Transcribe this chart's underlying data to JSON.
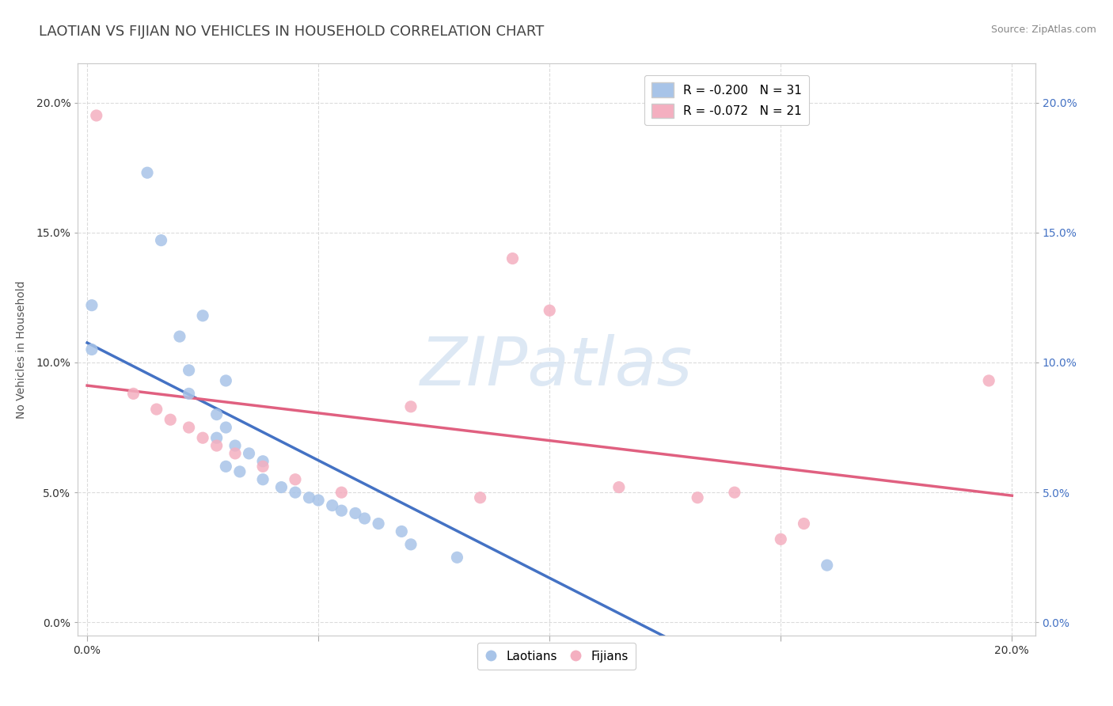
{
  "title": "LAOTIAN VS FIJIAN NO VEHICLES IN HOUSEHOLD CORRELATION CHART",
  "source": "Source: ZipAtlas.com",
  "xlim": [
    -0.002,
    0.205
  ],
  "ylim": [
    -0.005,
    0.215
  ],
  "ylabel": "No Vehicles in Household",
  "laotian_scatter": [
    [
      0.001,
      0.122
    ],
    [
      0.013,
      0.173
    ],
    [
      0.016,
      0.147
    ],
    [
      0.02,
      0.11
    ],
    [
      0.001,
      0.105
    ],
    [
      0.022,
      0.097
    ],
    [
      0.025,
      0.118
    ],
    [
      0.03,
      0.093
    ],
    [
      0.022,
      0.088
    ],
    [
      0.028,
      0.08
    ],
    [
      0.03,
      0.075
    ],
    [
      0.028,
      0.071
    ],
    [
      0.032,
      0.068
    ],
    [
      0.035,
      0.065
    ],
    [
      0.038,
      0.062
    ],
    [
      0.03,
      0.06
    ],
    [
      0.033,
      0.058
    ],
    [
      0.038,
      0.055
    ],
    [
      0.042,
      0.052
    ],
    [
      0.045,
      0.05
    ],
    [
      0.048,
      0.048
    ],
    [
      0.05,
      0.047
    ],
    [
      0.053,
      0.045
    ],
    [
      0.055,
      0.043
    ],
    [
      0.058,
      0.042
    ],
    [
      0.06,
      0.04
    ],
    [
      0.063,
      0.038
    ],
    [
      0.068,
      0.035
    ],
    [
      0.07,
      0.03
    ],
    [
      0.08,
      0.025
    ],
    [
      0.16,
      0.022
    ]
  ],
  "fijian_scatter": [
    [
      0.002,
      0.195
    ],
    [
      0.01,
      0.088
    ],
    [
      0.015,
      0.082
    ],
    [
      0.018,
      0.078
    ],
    [
      0.022,
      0.075
    ],
    [
      0.025,
      0.071
    ],
    [
      0.028,
      0.068
    ],
    [
      0.032,
      0.065
    ],
    [
      0.038,
      0.06
    ],
    [
      0.045,
      0.055
    ],
    [
      0.055,
      0.05
    ],
    [
      0.07,
      0.083
    ],
    [
      0.085,
      0.048
    ],
    [
      0.092,
      0.14
    ],
    [
      0.1,
      0.12
    ],
    [
      0.115,
      0.052
    ],
    [
      0.132,
      0.048
    ],
    [
      0.14,
      0.05
    ],
    [
      0.15,
      0.032
    ],
    [
      0.155,
      0.038
    ],
    [
      0.195,
      0.093
    ]
  ],
  "laotian_color": "#a8c4e8",
  "fijian_color": "#f4afc0",
  "laotian_line_color": "#4472c4",
  "fijian_line_color": "#e06080",
  "fijian_dashed_color": "#a8c4e8",
  "watermark_color": "#dde8f4",
  "watermark_text": "ZIPatlas",
  "background_color": "#ffffff",
  "grid_color": "#d8d8d8",
  "title_fontsize": 13,
  "source_fontsize": 9,
  "tick_fontsize": 10,
  "legend_fontsize": 11,
  "axis_label_fontsize": 10,
  "right_tick_color": "#4472c4"
}
